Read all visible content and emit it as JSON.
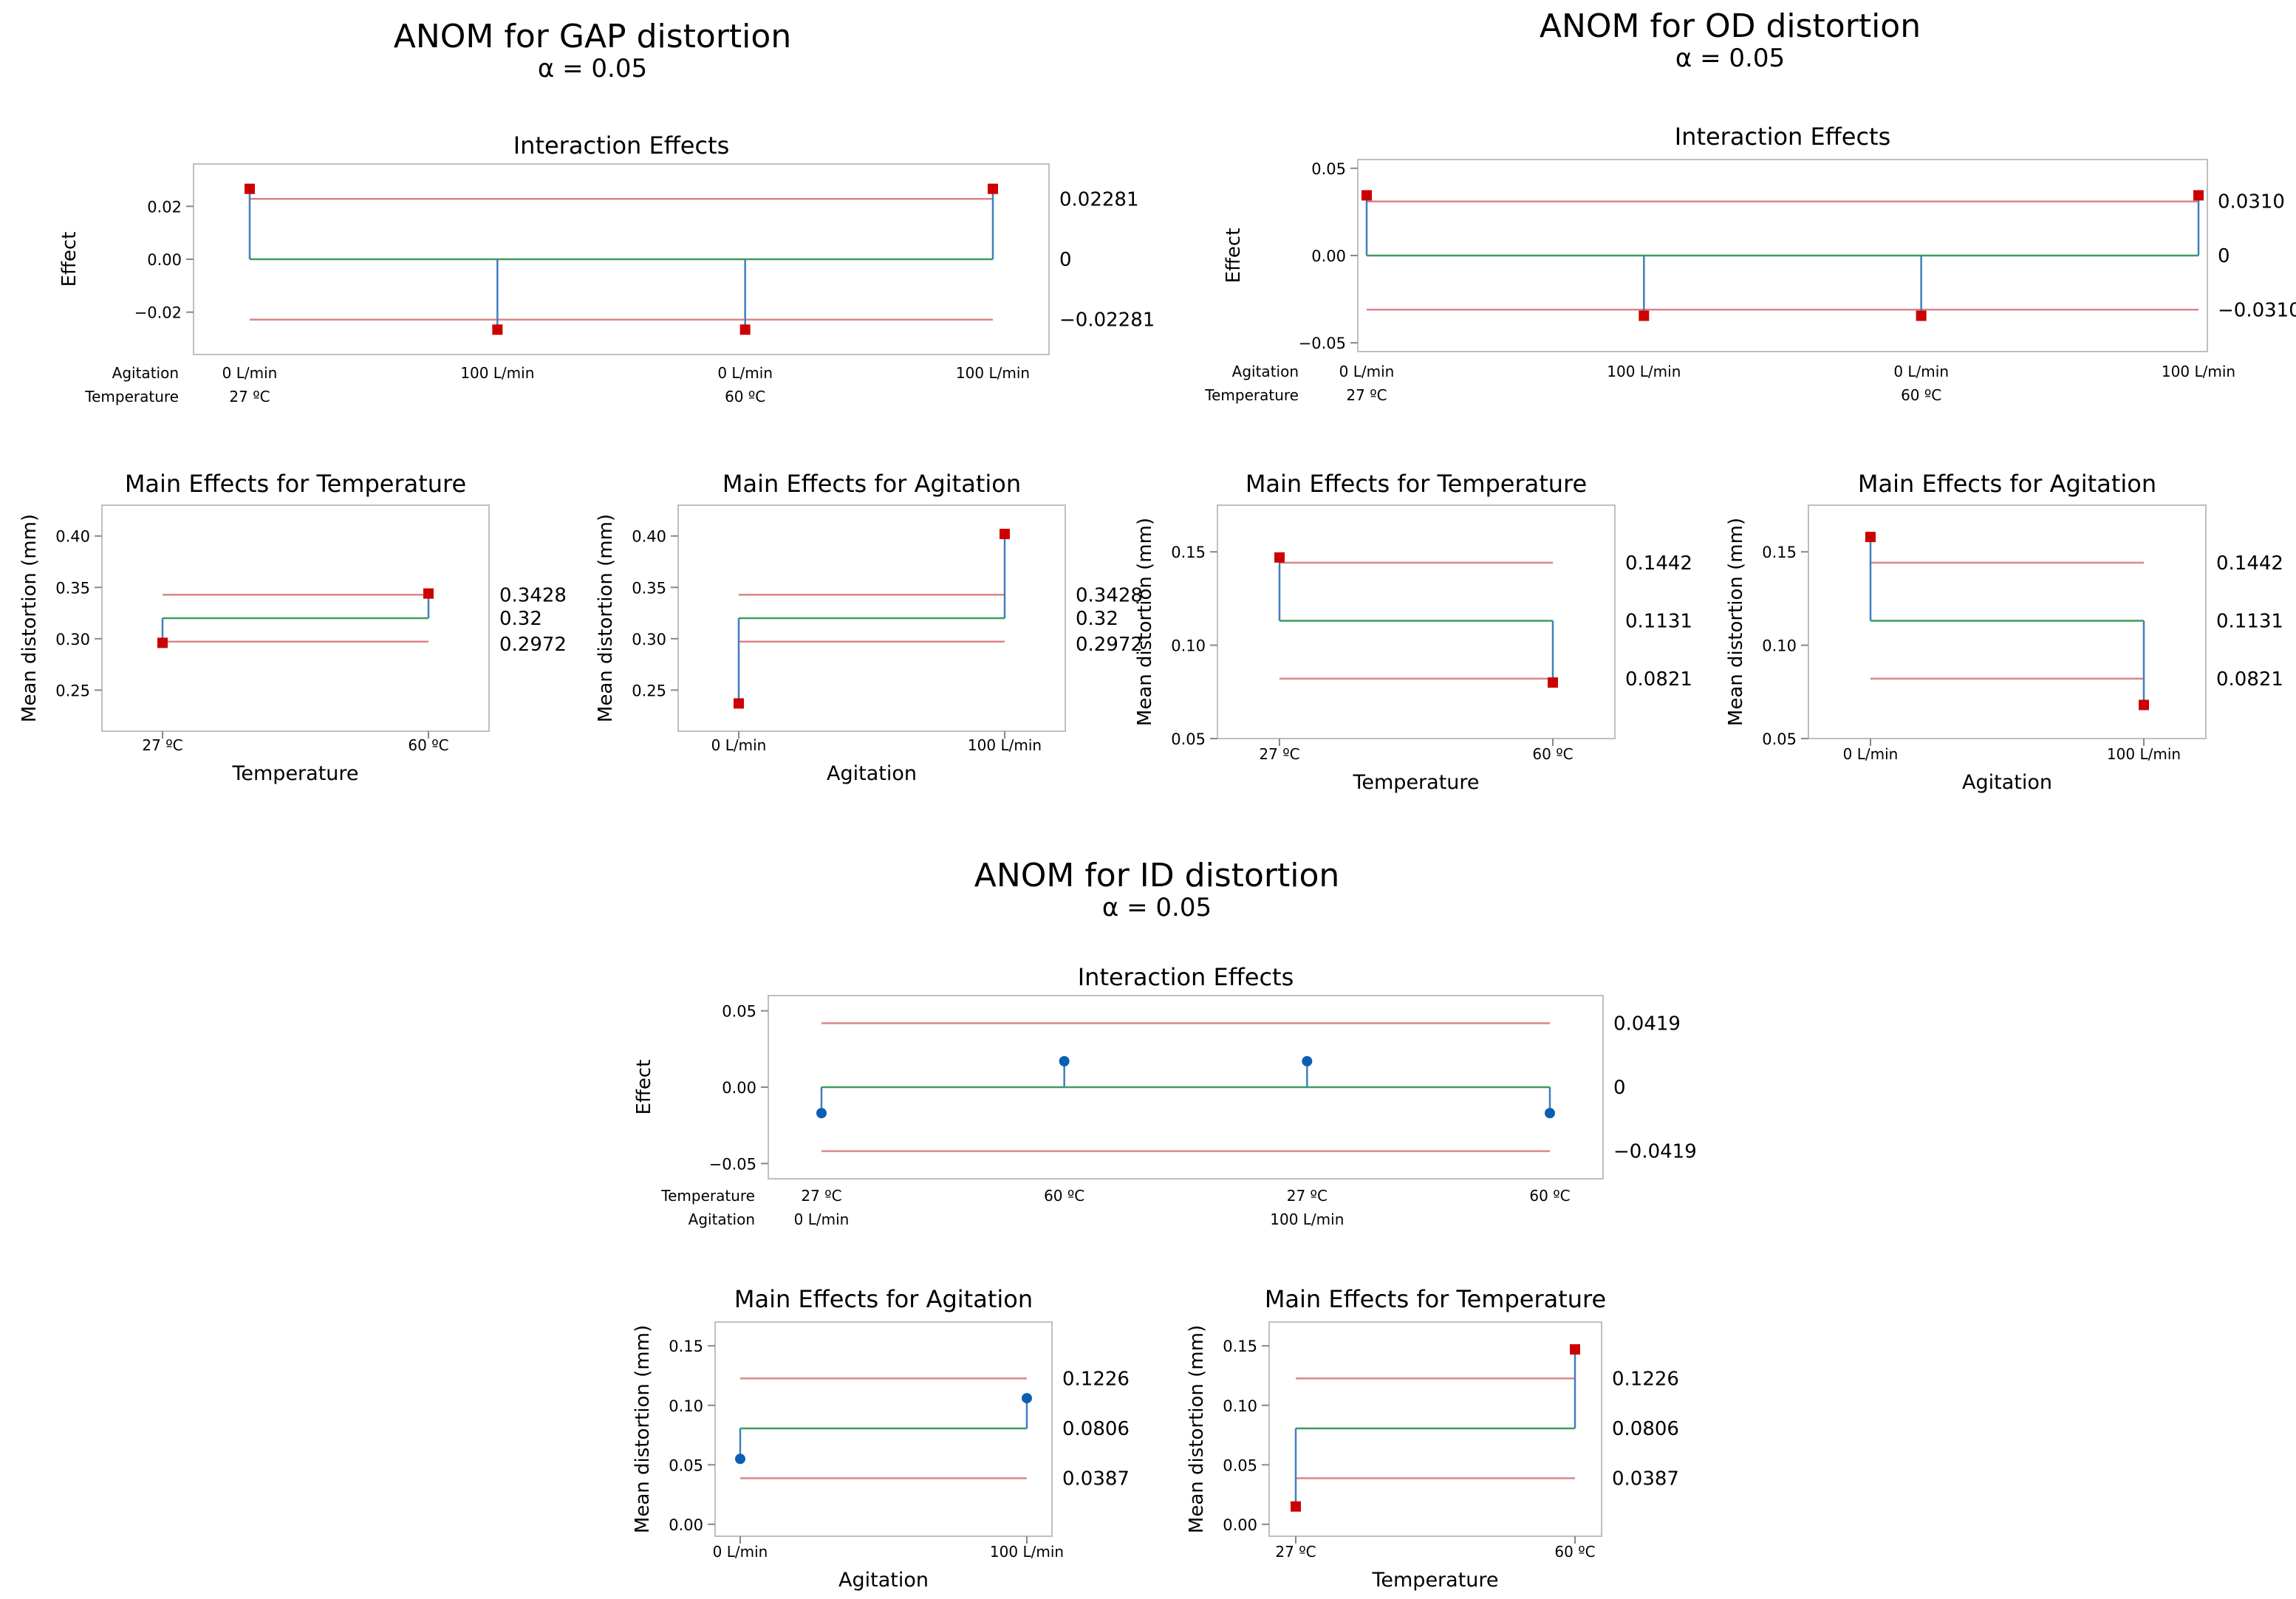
{
  "groups": [
    {
      "title": "ANOM for GAP distortion",
      "subtitle": "α = 0.05"
    },
    {
      "title": "ANOM for OD distortion",
      "subtitle": "α = 0.05"
    },
    {
      "title": "ANOM for ID distortion",
      "subtitle": "α = 0.05"
    }
  ],
  "chart_data": [
    {
      "id": "gap-interaction",
      "type": "line",
      "group": 0,
      "title": "Interaction Effects",
      "ylabel": "Effect",
      "xlabel": "",
      "ylim": [
        -0.036,
        0.036
      ],
      "yticks": [
        -0.02,
        0.0,
        0.02
      ],
      "ytick_labels": [
        "−0.02",
        "0.00",
        "0.02"
      ],
      "factor_rows": [
        {
          "name": "Agitation",
          "labels": [
            "0 L/min",
            "100 L/min",
            "0 L/min",
            "100 L/min"
          ],
          "positions": [
            0,
            1,
            2,
            3
          ]
        },
        {
          "name": "Temperature",
          "labels": [
            "27 ºC",
            "60 ºC"
          ],
          "positions": [
            0,
            2
          ]
        }
      ],
      "center": 0,
      "udl": 0.02281,
      "ldl": -0.02281,
      "center_label": "0",
      "udl_label": "0.02281",
      "ldl_label": "−0.02281",
      "values": [
        0.0266,
        -0.0266,
        -0.0266,
        0.0266
      ],
      "marker": "square",
      "marker_colors": [
        "#cc0000",
        "#cc0000",
        "#cc0000",
        "#cc0000"
      ]
    },
    {
      "id": "od-interaction",
      "type": "line",
      "group": 1,
      "title": "Interaction Effects",
      "ylabel": "Effect",
      "xlabel": "",
      "ylim": [
        -0.055,
        0.055
      ],
      "yticks": [
        -0.05,
        0.0,
        0.05
      ],
      "ytick_labels": [
        "−0.05",
        "0.00",
        "0.05"
      ],
      "factor_rows": [
        {
          "name": "Agitation",
          "labels": [
            "0 L/min",
            "100 L/min",
            "0 L/min",
            "100 L/min"
          ],
          "positions": [
            0,
            1,
            2,
            3
          ]
        },
        {
          "name": "Temperature",
          "labels": [
            "27 ºC",
            "60 ºC"
          ],
          "positions": [
            0,
            2
          ]
        }
      ],
      "center": 0,
      "udl": 0.031,
      "ldl": -0.031,
      "center_label": "0",
      "udl_label": "0.0310",
      "ldl_label": "−0.0310",
      "values": [
        0.0345,
        -0.0345,
        -0.0345,
        0.0345
      ],
      "marker": "square",
      "marker_colors": [
        "#cc0000",
        "#cc0000",
        "#cc0000",
        "#cc0000"
      ]
    },
    {
      "id": "gap-main-temp",
      "type": "line",
      "group": 0,
      "title": "Main Effects for Temperature",
      "ylabel": "Mean distortion (mm)",
      "xlabel": "Temperature",
      "ylim": [
        0.21,
        0.43
      ],
      "yticks": [
        0.25,
        0.3,
        0.35,
        0.4
      ],
      "ytick_labels": [
        "0.25",
        "0.30",
        "0.35",
        "0.40"
      ],
      "factor_rows": [
        {
          "name": "",
          "labels": [
            "27 ºC",
            "60 ºC"
          ],
          "positions": [
            0,
            1
          ]
        }
      ],
      "center": 0.32,
      "udl": 0.3428,
      "ldl": 0.2972,
      "center_label": "0.32",
      "udl_label": "0.3428",
      "ldl_label": "0.2972",
      "values": [
        0.296,
        0.344
      ],
      "marker": "square",
      "marker_colors": [
        "#cc0000",
        "#cc0000"
      ]
    },
    {
      "id": "gap-main-agit",
      "type": "line",
      "group": 0,
      "title": "Main Effects for Agitation",
      "ylabel": "Mean distortion (mm)",
      "xlabel": "Agitation",
      "ylim": [
        0.21,
        0.43
      ],
      "yticks": [
        0.25,
        0.3,
        0.35,
        0.4
      ],
      "ytick_labels": [
        "0.25",
        "0.30",
        "0.35",
        "0.40"
      ],
      "factor_rows": [
        {
          "name": "",
          "labels": [
            "0 L/min",
            "100 L/min"
          ],
          "positions": [
            0,
            1
          ]
        }
      ],
      "center": 0.32,
      "udl": 0.3428,
      "ldl": 0.2972,
      "center_label": "0.32",
      "udl_label": "0.3428",
      "ldl_label": "0.2972",
      "values": [
        0.237,
        0.402
      ],
      "marker": "square",
      "marker_colors": [
        "#cc0000",
        "#cc0000"
      ]
    },
    {
      "id": "od-main-temp",
      "type": "line",
      "group": 1,
      "title": "Main Effects for Temperature",
      "ylabel": "Mean distortion (mm)",
      "xlabel": "Temperature",
      "ylim": [
        0.05,
        0.175
      ],
      "yticks": [
        0.05,
        0.1,
        0.15
      ],
      "ytick_labels": [
        "0.05",
        "0.10",
        "0.15"
      ],
      "factor_rows": [
        {
          "name": "",
          "labels": [
            "27 ºC",
            "60 ºC"
          ],
          "positions": [
            0,
            1
          ]
        }
      ],
      "center": 0.1131,
      "udl": 0.1442,
      "ldl": 0.0821,
      "center_label": "0.1131",
      "udl_label": "0.1442",
      "ldl_label": "0.0821",
      "values": [
        0.147,
        0.08
      ],
      "marker": "square",
      "marker_colors": [
        "#cc0000",
        "#cc0000"
      ]
    },
    {
      "id": "od-main-agit",
      "type": "line",
      "group": 1,
      "title": "Main Effects for Agitation",
      "ylabel": "Mean distortion (mm)",
      "xlabel": "Agitation",
      "ylim": [
        0.05,
        0.175
      ],
      "yticks": [
        0.05,
        0.1,
        0.15
      ],
      "ytick_labels": [
        "0.05",
        "0.10",
        "0.15"
      ],
      "factor_rows": [
        {
          "name": "",
          "labels": [
            "0 L/min",
            "100 L/min"
          ],
          "positions": [
            0,
            1
          ]
        }
      ],
      "center": 0.1131,
      "udl": 0.1442,
      "ldl": 0.0821,
      "center_label": "0.1131",
      "udl_label": "0.1442",
      "ldl_label": "0.0821",
      "values": [
        0.158,
        0.068
      ],
      "marker": "square",
      "marker_colors": [
        "#cc0000",
        "#cc0000"
      ]
    },
    {
      "id": "id-interaction",
      "type": "line",
      "group": 2,
      "title": "Interaction Effects",
      "ylabel": "Effect",
      "xlabel": "",
      "ylim": [
        -0.06,
        0.06
      ],
      "yticks": [
        -0.05,
        0.0,
        0.05
      ],
      "ytick_labels": [
        "−0.05",
        "0.00",
        "0.05"
      ],
      "factor_rows": [
        {
          "name": "Temperature",
          "labels": [
            "27 ºC",
            "60 ºC",
            "27 ºC",
            "60 ºC"
          ],
          "positions": [
            0,
            1,
            2,
            3
          ]
        },
        {
          "name": "Agitation",
          "labels": [
            "0 L/min",
            "100 L/min"
          ],
          "positions": [
            0,
            2
          ]
        }
      ],
      "center": 0,
      "udl": 0.0419,
      "ldl": -0.0419,
      "center_label": "0",
      "udl_label": "0.0419",
      "ldl_label": "−0.0419",
      "values": [
        -0.017,
        0.017,
        0.017,
        -0.017
      ],
      "marker": "circle",
      "marker_colors": [
        "#0a5fb4",
        "#0a5fb4",
        "#0a5fb4",
        "#0a5fb4"
      ]
    },
    {
      "id": "id-main-agit",
      "type": "line",
      "group": 2,
      "title": "Main Effects for Agitation",
      "ylabel": "Mean distortion (mm)",
      "xlabel": "Agitation",
      "ylim": [
        -0.01,
        0.17
      ],
      "yticks": [
        0.0,
        0.05,
        0.1,
        0.15
      ],
      "ytick_labels": [
        "0.00",
        "0.05",
        "0.10",
        "0.15"
      ],
      "factor_rows": [
        {
          "name": "",
          "labels": [
            "0 L/min",
            "100 L/min"
          ],
          "positions": [
            0,
            1
          ]
        }
      ],
      "center": 0.0806,
      "udl": 0.1226,
      "ldl": 0.0387,
      "center_label": "0.0806",
      "udl_label": "0.1226",
      "ldl_label": "0.0387",
      "values": [
        0.055,
        0.106
      ],
      "marker": "circle",
      "marker_colors": [
        "#0a5fb4",
        "#0a5fb4"
      ]
    },
    {
      "id": "id-main-temp",
      "type": "line",
      "group": 2,
      "title": "Main Effects for Temperature",
      "ylabel": "Mean distortion (mm)",
      "xlabel": "Temperature",
      "ylim": [
        -0.01,
        0.17
      ],
      "yticks": [
        0.0,
        0.05,
        0.1,
        0.15
      ],
      "ytick_labels": [
        "0.00",
        "0.05",
        "0.10",
        "0.15"
      ],
      "factor_rows": [
        {
          "name": "",
          "labels": [
            "27 ºC",
            "60 ºC"
          ],
          "positions": [
            0,
            1
          ]
        }
      ],
      "center": 0.0806,
      "udl": 0.1226,
      "ldl": 0.0387,
      "center_label": "0.0806",
      "udl_label": "0.1226",
      "ldl_label": "0.0387",
      "values": [
        0.015,
        0.147
      ],
      "marker": "square",
      "marker_colors": [
        "#cc0000",
        "#cc0000"
      ]
    }
  ],
  "colors": {
    "decision_line": "#d9868a",
    "center_line": "#3c9e58",
    "stem": "#3f7fbf",
    "frame": "#bfbfbf",
    "axis_text": "#111111"
  }
}
